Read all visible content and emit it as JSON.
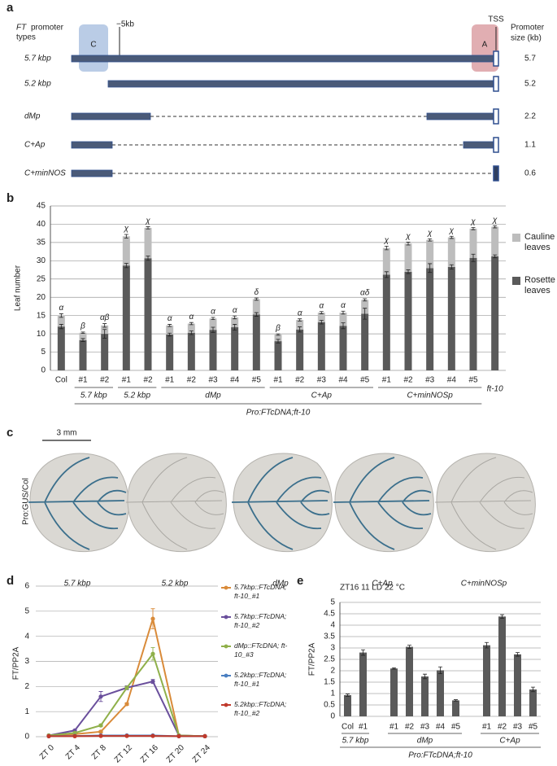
{
  "panel_a": {
    "panel": "a",
    "header": [
      "FT",
      "promoter",
      "types"
    ],
    "marker": "−5kb",
    "tss": "TSS",
    "region_c": "C",
    "region_a": "A",
    "size_header": [
      "Promoter",
      "size (kb)"
    ],
    "rows": [
      {
        "name": "5.7 kbp",
        "size": 5.7
      },
      {
        "name": "5.2 kbp",
        "size": 5.2
      },
      {
        "name": "dMp",
        "size": 2.2
      },
      {
        "name": "C+Ap",
        "size": 1.1
      },
      {
        "name": "C+minNOS",
        "size": 0.6
      }
    ]
  },
  "chart_data": [
    {
      "type": "stacked_bar",
      "panel": "b",
      "categories": [
        "Col",
        "#1",
        "#2",
        "#1",
        "#2",
        "#1",
        "#2",
        "#3",
        "#4",
        "#5",
        "#1",
        "#2",
        "#3",
        "#4",
        "#5",
        "#1",
        "#2",
        "#3",
        "#4",
        "#5",
        "ft-10"
      ],
      "groups": [
        "5.7 kbp",
        "5.2 kbp",
        "dMp",
        "C+Ap",
        "C+minNOSp"
      ],
      "xlabel": "Pro:FTcDNA;ft-10",
      "ylabel": "Leaf number",
      "ylim": [
        0,
        45
      ],
      "yticks": [
        0,
        5,
        10,
        15,
        20,
        25,
        30,
        35,
        40,
        45
      ],
      "grid": true,
      "legend": "right",
      "series": [
        {
          "name": "Rosette leaves",
          "color": "#5a5a5a",
          "values": [
            12,
            8.3,
            10,
            28.7,
            30.7,
            9.8,
            10.3,
            11.1,
            11.8,
            15.3,
            8,
            11.2,
            13.2,
            12.2,
            15.5,
            26.2,
            27,
            28,
            28.3,
            30.8,
            31.2
          ],
          "errors": [
            0.6,
            0.4,
            1.2,
            0.6,
            0.6,
            0.4,
            0.5,
            0.7,
            0.8,
            0.5,
            0.5,
            0.7,
            0.5,
            0.8,
            1.5,
            0.8,
            0.5,
            1.2,
            0.6,
            1.0,
            0.4
          ]
        },
        {
          "name": "Cauline leaves",
          "color": "#bdbdbd",
          "values": [
            3,
            2,
            2.3,
            8,
            8.3,
            2.5,
            2.5,
            3.1,
            2.7,
            4.2,
            1.8,
            2.6,
            2.6,
            3.6,
            3.8,
            7.3,
            7.7,
            7.7,
            8.1,
            8,
            8.1
          ],
          "errors": [
            0.5,
            0.2,
            0.5,
            0.5,
            0.3,
            0.3,
            0.3,
            0.3,
            0.4,
            0.3,
            0.2,
            0.3,
            0.3,
            0.4,
            0.3,
            0.5,
            0.4,
            0.3,
            0.3,
            0.3,
            0.3
          ]
        }
      ],
      "annotations": [
        "α",
        "β",
        "αβ",
        "χ",
        "χ",
        "α",
        "α",
        "α",
        "α",
        "δ",
        "β",
        "α",
        "α",
        "α",
        "αδ",
        "χ",
        "χ",
        "χ",
        "χ",
        "χ",
        "χ"
      ]
    },
    {
      "type": "line",
      "panel": "d",
      "categories": [
        "ZT 0",
        "ZT 4",
        "ZT 8",
        "ZT 12",
        "ZT 16",
        "ZT 20",
        "ZT 24"
      ],
      "ylabel": "FT/PP2A",
      "ylim": [
        0,
        6
      ],
      "yticks": [
        0,
        1,
        2,
        3,
        4,
        5,
        6
      ],
      "grid": true,
      "legend": "right",
      "series": [
        {
          "name": "5.7kbp::FTcDNA; ft-10_#1",
          "color": "#d98b3a",
          "values": [
            0.05,
            0.1,
            0.2,
            1.3,
            4.7,
            0.05,
            0.02
          ],
          "errors": [
            0.01,
            0.02,
            0.05,
            0.05,
            0.4,
            0.01,
            0.01
          ]
        },
        {
          "name": "5.7kbp::FTcDNA; ft-10_#2",
          "color": "#6a4f9c",
          "values": [
            0.05,
            0.25,
            1.6,
            1.95,
            2.2,
            0.05,
            0.02
          ],
          "errors": [
            0.01,
            0.03,
            0.2,
            0.08,
            0.08,
            0.01,
            0.01
          ]
        },
        {
          "name": "dMp::FTcDNA; ft-10_#3",
          "color": "#8fb04a",
          "values": [
            0.05,
            0.15,
            0.45,
            1.95,
            3.3,
            0.05,
            0.02
          ],
          "errors": [
            0.01,
            0.02,
            0.05,
            0.05,
            0.25,
            0.01,
            0.01
          ]
        },
        {
          "name": "5.2kbp::FTcDNA; ft-10_#1",
          "color": "#4a7fc1",
          "values": [
            0.02,
            0.03,
            0.05,
            0.05,
            0.05,
            0.02,
            0.02
          ],
          "errors": [
            0.01,
            0.01,
            0.01,
            0.01,
            0.01,
            0.01,
            0.01
          ]
        },
        {
          "name": "5.2kbp::FTcDNA; ft-10_#2",
          "color": "#c0392b",
          "values": [
            0.02,
            0.02,
            0.03,
            0.03,
            0.03,
            0.02,
            0.02
          ],
          "errors": [
            0.01,
            0.01,
            0.01,
            0.01,
            0.01,
            0.01,
            0.01
          ]
        }
      ]
    },
    {
      "type": "bar",
      "panel": "e",
      "title": "ZT16 11 LD 22 °C",
      "categories": [
        "Col",
        "#1",
        null,
        "#1",
        "#2",
        "#3",
        "#4",
        "#5",
        null,
        "#1",
        "#2",
        "#3",
        "#5"
      ],
      "values": [
        0.93,
        2.8,
        null,
        2.1,
        3.05,
        1.75,
        2.02,
        0.7,
        null,
        3.12,
        4.38,
        2.72,
        1.18
      ],
      "errors": [
        0.05,
        0.12,
        null,
        0.03,
        0.07,
        0.1,
        0.15,
        0.03,
        null,
        0.12,
        0.08,
        0.08,
        0.1
      ],
      "color": "#5a5a5a",
      "groups": [
        "5.7 kbp",
        "dMp",
        "C+Ap"
      ],
      "xlabel": "Pro:FTcDNA;ft-10",
      "ylabel": "FT/PP2A",
      "ylim": [
        0,
        5
      ],
      "yticks": [
        0,
        0.5,
        1,
        1.5,
        2,
        2.5,
        3,
        3.5,
        4,
        4.5,
        5
      ],
      "grid": true
    }
  ],
  "panel_c": {
    "panel": "c",
    "scale": "3 mm",
    "ylabel": "Pro:GUS/Col",
    "labels": [
      "5.7 kbp",
      "5.2 kbp",
      "dMp",
      "C+Ap",
      "C+minNOSp"
    ]
  }
}
